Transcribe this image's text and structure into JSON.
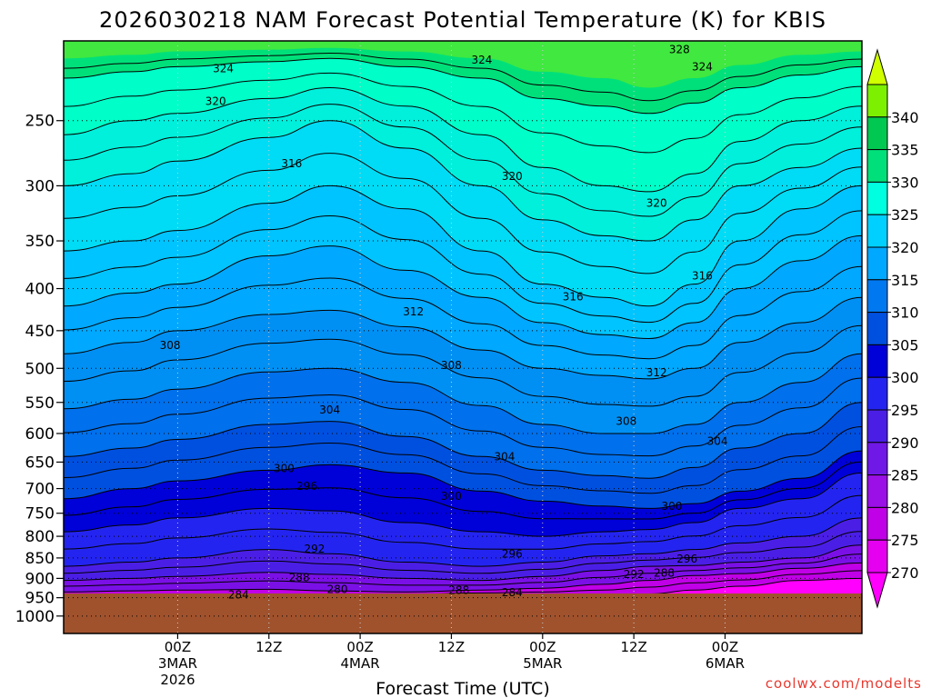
{
  "title": "2026030218 NAM Forecast Potential Temperature (K) for KBIS",
  "credit": "coolwx.com/modelts",
  "chart_data": {
    "type": "heatmap",
    "title": "2026030218 NAM Forecast Potential Temperature (K) for KBIS",
    "xlabel": "Forecast Time (UTC)",
    "ylabel": "",
    "y_axis": {
      "scale": "log",
      "direction": "inverted",
      "ticks": [
        250,
        300,
        350,
        400,
        450,
        500,
        550,
        600,
        650,
        700,
        750,
        800,
        850,
        900,
        950,
        1000
      ],
      "range": [
        200,
        1050
      ]
    },
    "x_axis": {
      "range_hours": [
        -15,
        90
      ],
      "ticks": [
        {
          "hour": 0,
          "label": "00Z",
          "sub": [
            "3MAR",
            "2026"
          ]
        },
        {
          "hour": 12,
          "label": "12Z",
          "sub": []
        },
        {
          "hour": 24,
          "label": "00Z",
          "sub": [
            "4MAR"
          ]
        },
        {
          "hour": 36,
          "label": "12Z",
          "sub": []
        },
        {
          "hour": 48,
          "label": "00Z",
          "sub": [
            "5MAR"
          ]
        },
        {
          "hour": 60,
          "label": "12Z",
          "sub": []
        },
        {
          "hour": 72,
          "label": "00Z",
          "sub": [
            "6MAR"
          ]
        }
      ]
    },
    "grid": true,
    "colorbar": {
      "levels": [
        270,
        275,
        280,
        285,
        290,
        295,
        300,
        305,
        310,
        315,
        320,
        325,
        330,
        335,
        340
      ],
      "colors": [
        "#ff00ff",
        "#e600f0",
        "#c000e6",
        "#9a10e6",
        "#7018e6",
        "#4b1ee6",
        "#2424f0",
        "#0000d8",
        "#0050e0",
        "#0078f0",
        "#00a8ff",
        "#00d0ff",
        "#00ffe0",
        "#00e07a",
        "#00c850",
        "#7cf000",
        "#d0ff00"
      ]
    },
    "contour_labels": [
      {
        "value": "328",
        "hour": 66,
        "p": 205
      },
      {
        "value": "324",
        "hour": 69,
        "p": 215
      },
      {
        "value": "324",
        "hour": 40,
        "p": 211
      },
      {
        "value": "324",
        "hour": 6,
        "p": 216
      },
      {
        "value": "320",
        "hour": 5,
        "p": 237
      },
      {
        "value": "320",
        "hour": 44,
        "p": 292
      },
      {
        "value": "320",
        "hour": 63,
        "p": 315
      },
      {
        "value": "316",
        "hour": 15,
        "p": 282
      },
      {
        "value": "316",
        "hour": 52,
        "p": 409
      },
      {
        "value": "316",
        "hour": 69,
        "p": 386
      },
      {
        "value": "312",
        "hour": 31,
        "p": 427
      },
      {
        "value": "312",
        "hour": 63,
        "p": 506
      },
      {
        "value": "308",
        "hour": -1,
        "p": 469
      },
      {
        "value": "308",
        "hour": 36,
        "p": 496
      },
      {
        "value": "308",
        "hour": 59,
        "p": 580
      },
      {
        "value": "304",
        "hour": 20,
        "p": 562
      },
      {
        "value": "304",
        "hour": 43,
        "p": 640
      },
      {
        "value": "304",
        "hour": 71,
        "p": 613
      },
      {
        "value": "300",
        "hour": 14,
        "p": 662
      },
      {
        "value": "300",
        "hour": 36,
        "p": 715
      },
      {
        "value": "300",
        "hour": 65,
        "p": 735
      },
      {
        "value": "296",
        "hour": 17,
        "p": 695
      },
      {
        "value": "296",
        "hour": 44,
        "p": 840
      },
      {
        "value": "296",
        "hour": 67,
        "p": 852
      },
      {
        "value": "292",
        "hour": 18,
        "p": 829
      },
      {
        "value": "292",
        "hour": 60,
        "p": 890
      },
      {
        "value": "288",
        "hour": 16,
        "p": 898
      },
      {
        "value": "288",
        "hour": 37,
        "p": 931
      },
      {
        "value": "288",
        "hour": 64,
        "p": 887
      },
      {
        "value": "284",
        "hour": 8,
        "p": 943
      },
      {
        "value": "284",
        "hour": 44,
        "p": 936
      },
      {
        "value": "280",
        "hour": 21,
        "p": 928
      }
    ],
    "surface_pressure": 950
  }
}
